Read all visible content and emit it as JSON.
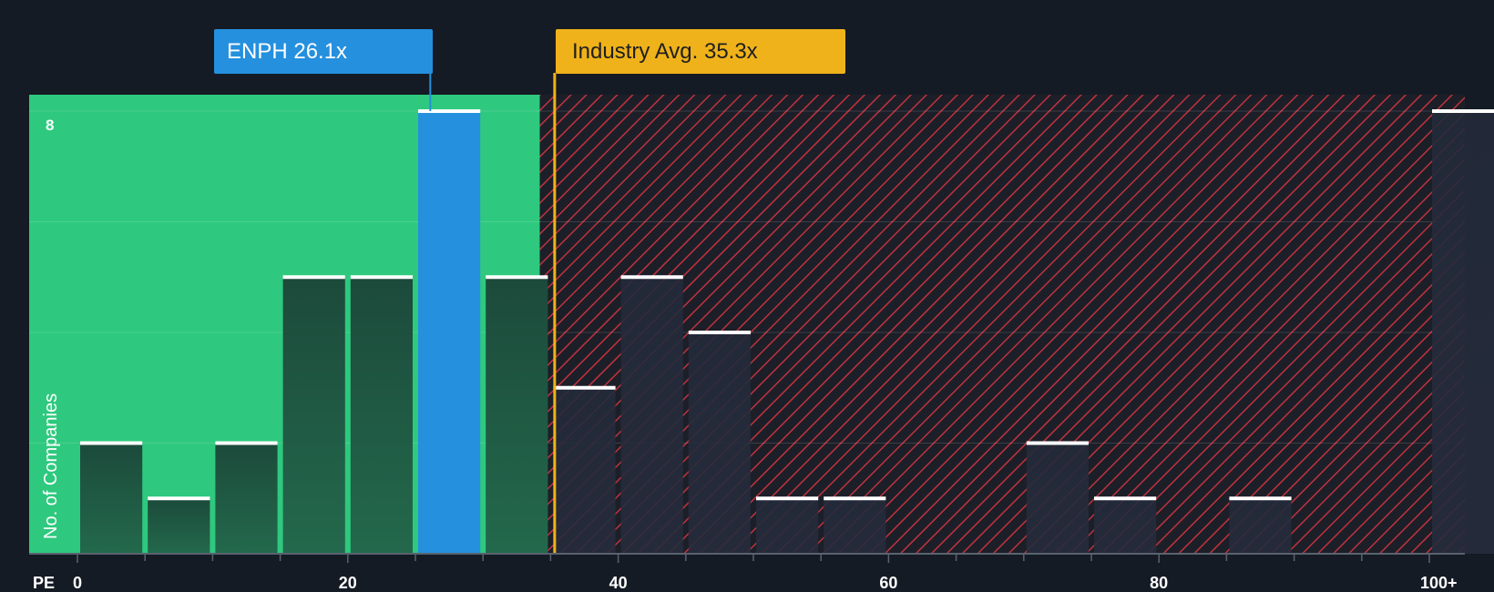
{
  "chart_data": {
    "type": "bar",
    "title": "",
    "xlabel": "PE",
    "ylabel": "No. of Companies",
    "ylim": [
      0,
      8
    ],
    "y_max_label": "8",
    "x_ticks": [
      {
        "value": 0,
        "label": "0"
      },
      {
        "value": 20,
        "label": "20"
      },
      {
        "value": 40,
        "label": "40"
      },
      {
        "value": 60,
        "label": "60"
      },
      {
        "value": 80,
        "label": "80"
      },
      {
        "value": 100,
        "label": "100+"
      }
    ],
    "bins": [
      {
        "start": 0,
        "end": 5,
        "count": 2
      },
      {
        "start": 5,
        "end": 10,
        "count": 1
      },
      {
        "start": 10,
        "end": 15,
        "count": 2
      },
      {
        "start": 15,
        "end": 20,
        "count": 5
      },
      {
        "start": 20,
        "end": 25,
        "count": 5
      },
      {
        "start": 25,
        "end": 30,
        "count": 8,
        "highlight": true
      },
      {
        "start": 30,
        "end": 35,
        "count": 5
      },
      {
        "start": 35,
        "end": 40,
        "count": 3
      },
      {
        "start": 40,
        "end": 45,
        "count": 5
      },
      {
        "start": 45,
        "end": 50,
        "count": 4
      },
      {
        "start": 50,
        "end": 55,
        "count": 1
      },
      {
        "start": 55,
        "end": 60,
        "count": 1
      },
      {
        "start": 60,
        "end": 65,
        "count": 0
      },
      {
        "start": 65,
        "end": 70,
        "count": 0
      },
      {
        "start": 70,
        "end": 75,
        "count": 2
      },
      {
        "start": 75,
        "end": 80,
        "count": 1
      },
      {
        "start": 80,
        "end": 85,
        "count": 0
      },
      {
        "start": 85,
        "end": 90,
        "count": 1
      },
      {
        "start": 90,
        "end": 95,
        "count": 0
      },
      {
        "start": 95,
        "end": 100,
        "count": 0
      },
      {
        "start": 100,
        "end": 105,
        "count": 8
      }
    ],
    "company": {
      "ticker": "ENPH",
      "value": 26.1,
      "label": "ENPH 26.1x"
    },
    "industry_avg": {
      "value": 35.3,
      "label": "Industry Avg. 35.3x"
    },
    "fair_zone_end": 34.2,
    "colors": {
      "background": "#151b24",
      "fair_zone": "#2ec97e",
      "over_zone_stripe": "#c0323d",
      "company": "#2590de",
      "industry": "#efb21a",
      "bar_top": "#ffffff"
    }
  }
}
